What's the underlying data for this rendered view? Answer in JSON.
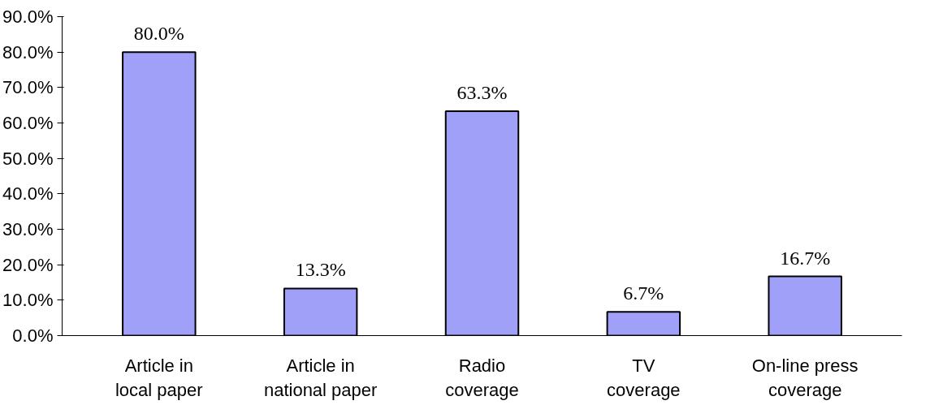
{
  "chart_data": {
    "type": "bar",
    "categories": [
      "Article in local paper",
      "Article in national paper",
      "Radio coverage",
      "TV coverage",
      "On-line press coverage"
    ],
    "values": [
      80.0,
      13.3,
      63.3,
      6.7,
      16.7
    ],
    "value_labels": [
      "80.0%",
      "13.3%",
      "63.3%",
      "6.7%",
      "16.7%"
    ],
    "color": "#a0a0f8",
    "ylim": [
      0,
      90
    ],
    "yticks": [
      {
        "value": 0,
        "label": "0.0%"
      },
      {
        "value": 10,
        "label": "10.0%"
      },
      {
        "value": 20,
        "label": "20.0%"
      },
      {
        "value": 30,
        "label": "30.0%"
      },
      {
        "value": 40,
        "label": "40.0%"
      },
      {
        "value": 50,
        "label": "50.0%"
      },
      {
        "value": 60,
        "label": "60.0%"
      },
      {
        "value": 70,
        "label": "70.0%"
      },
      {
        "value": 80,
        "label": "80.0%"
      },
      {
        "value": 90,
        "label": "90.0%"
      }
    ],
    "grid": false
  }
}
